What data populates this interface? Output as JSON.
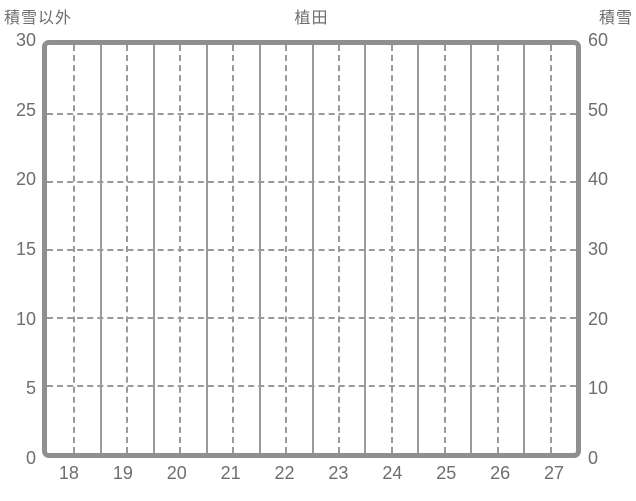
{
  "header": {
    "left_axis_title": "積雪以外",
    "chart_title": "植田",
    "right_axis_title": "積雪"
  },
  "chart_data": {
    "type": "line",
    "title": "植田",
    "series": [],
    "note": "plot area is empty - no data series drawn",
    "x_axis": {
      "tick_labels": [
        "18",
        "19",
        "20",
        "21",
        "22",
        "23",
        "24",
        "25",
        "26",
        "27"
      ],
      "intervals": 10
    },
    "y_axis_left": {
      "label": "積雪以外",
      "tick_labels": [
        "30",
        "25",
        "20",
        "15",
        "10",
        "5",
        "0"
      ],
      "range": [
        0,
        30
      ]
    },
    "y_axis_right": {
      "label": "積雪",
      "tick_labels": [
        "60",
        "50",
        "40",
        "30",
        "20",
        "10",
        "0"
      ],
      "range": [
        0,
        60
      ]
    },
    "grid": {
      "vertical_solid_at_boundaries": true,
      "vertical_dashed_at_centers": true,
      "horizontal_dashed_at_ticks": true
    },
    "legend": "none"
  },
  "colors": {
    "background": "#ffffff",
    "frame": "#8f8f8f",
    "grid": "#9a9a9a",
    "text": "#6e6e6e"
  }
}
